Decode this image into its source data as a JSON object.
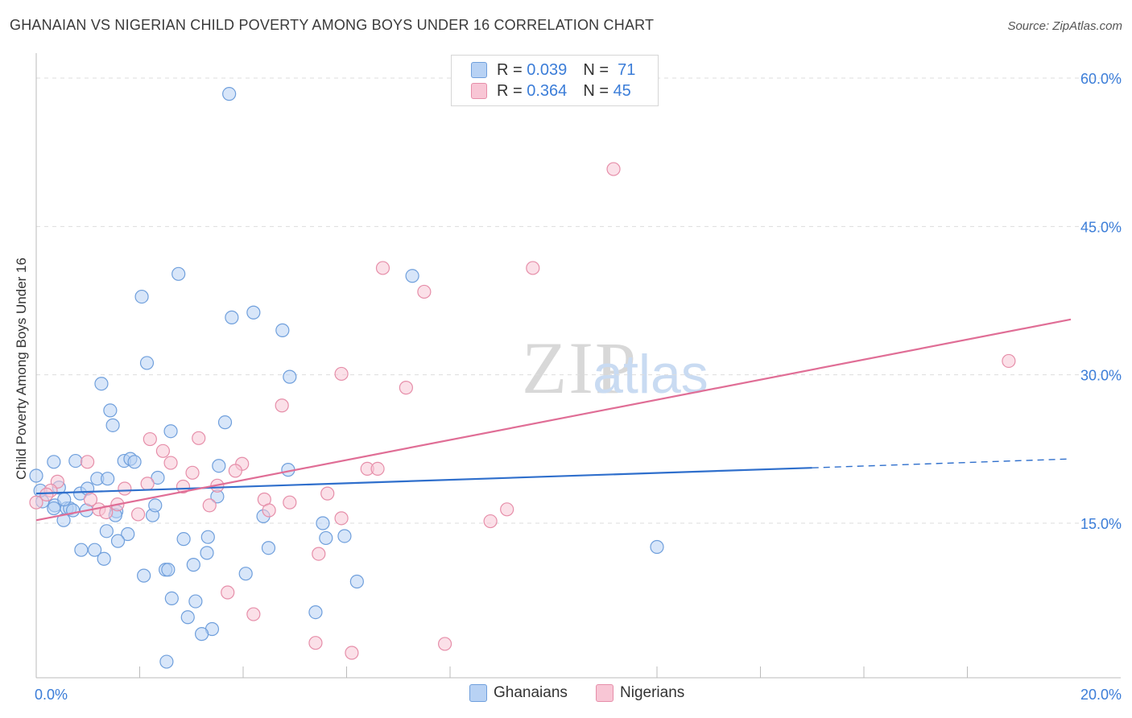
{
  "header": {
    "title": "GHANAIAN VS NIGERIAN CHILD POVERTY AMONG BOYS UNDER 16 CORRELATION CHART",
    "source": "Source: ZipAtlas.com"
  },
  "watermark": {
    "zip": "ZIP",
    "atlas": "atlas"
  },
  "colors": {
    "blue_fill": "#b8d2f4",
    "blue_stroke": "#6f9fdc",
    "blue_line": "#2f6fcc",
    "pink_fill": "#f8c6d5",
    "pink_stroke": "#e68ea9",
    "pink_line": "#e06e96",
    "tick_text": "#3b7dd8",
    "grid": "#dddddd"
  },
  "legend_top": {
    "rows": [
      {
        "r_label": "R =",
        "r_value": "0.039",
        "n_label": "N =",
        "n_value": "71"
      },
      {
        "r_label": "R =",
        "r_value": "0.364",
        "n_label": "N =",
        "n_value": "45"
      }
    ]
  },
  "legend_bottom": {
    "items": [
      "Ghanaians",
      "Nigerians"
    ]
  },
  "chart_data": {
    "type": "scatter",
    "title": "GHANAIAN VS NIGERIAN CHILD POVERTY AMONG BOYS UNDER 16 CORRELATION CHART",
    "xlabel": "",
    "ylabel": "Child Poverty Among Boys Under 16",
    "xlim": [
      0,
      20
    ],
    "ylim": [
      0,
      60
    ],
    "x_tick_labels": {
      "min": "0.0%",
      "max": "20.0%"
    },
    "y_ticks": [
      15,
      30,
      45,
      60
    ],
    "y_tick_labels": [
      "15.0%",
      "30.0%",
      "45.0%",
      "60.0%"
    ],
    "legend": "bottom-center",
    "series": [
      {
        "name": "Ghanaians",
        "R": 0.039,
        "N": 71,
        "trend": {
          "x0": 0,
          "y0": 18.0,
          "x1": 15.0,
          "y1": 20.6,
          "dash_to_x": 20,
          "dash_to_y": 21.5
        },
        "points": [
          [
            3.73,
            58.4
          ],
          [
            2.75,
            40.2
          ],
          [
            7.27,
            40.0
          ],
          [
            2.04,
            37.9
          ],
          [
            3.78,
            35.8
          ],
          [
            4.2,
            36.3
          ],
          [
            4.76,
            34.5
          ],
          [
            2.14,
            31.2
          ],
          [
            4.9,
            29.8
          ],
          [
            1.26,
            29.1
          ],
          [
            1.43,
            26.4
          ],
          [
            1.48,
            24.9
          ],
          [
            3.65,
            25.2
          ],
          [
            2.6,
            24.3
          ],
          [
            0.0,
            19.8
          ],
          [
            0.34,
            21.2
          ],
          [
            0.76,
            21.3
          ],
          [
            1.7,
            21.3
          ],
          [
            1.82,
            21.5
          ],
          [
            1.9,
            21.2
          ],
          [
            0.36,
            16.8
          ],
          [
            0.59,
            16.5
          ],
          [
            0.65,
            16.5
          ],
          [
            0.71,
            16.3
          ],
          [
            0.85,
            18.0
          ],
          [
            0.99,
            18.5
          ],
          [
            1.18,
            19.5
          ],
          [
            0.54,
            17.4
          ],
          [
            0.44,
            18.6
          ],
          [
            0.12,
            17.2
          ],
          [
            0.08,
            18.3
          ],
          [
            0.53,
            15.3
          ],
          [
            0.34,
            16.5
          ],
          [
            2.35,
            19.6
          ],
          [
            1.38,
            19.5
          ],
          [
            3.5,
            17.7
          ],
          [
            3.53,
            20.8
          ],
          [
            2.25,
            15.8
          ],
          [
            1.55,
            16.2
          ],
          [
            2.3,
            16.8
          ],
          [
            1.77,
            13.9
          ],
          [
            1.36,
            14.2
          ],
          [
            1.58,
            13.2
          ],
          [
            2.85,
            13.4
          ],
          [
            3.32,
            13.6
          ],
          [
            0.87,
            12.3
          ],
          [
            1.13,
            12.3
          ],
          [
            1.31,
            11.4
          ],
          [
            3.3,
            12.0
          ],
          [
            4.49,
            12.5
          ],
          [
            2.5,
            10.3
          ],
          [
            2.55,
            10.3
          ],
          [
            2.08,
            9.7
          ],
          [
            3.04,
            10.8
          ],
          [
            4.05,
            9.9
          ],
          [
            4.87,
            20.4
          ],
          [
            4.39,
            15.7
          ],
          [
            5.54,
            15.0
          ],
          [
            5.6,
            13.5
          ],
          [
            5.96,
            13.7
          ],
          [
            6.2,
            9.1
          ],
          [
            2.62,
            7.4
          ],
          [
            3.08,
            7.1
          ],
          [
            2.93,
            5.5
          ],
          [
            3.4,
            4.3
          ],
          [
            3.2,
            3.8
          ],
          [
            5.4,
            6.0
          ],
          [
            2.52,
            1.0
          ],
          [
            12.0,
            12.6
          ],
          [
            1.53,
            15.8
          ],
          [
            0.97,
            16.3
          ]
        ]
      },
      {
        "name": "Nigerians",
        "R": 0.364,
        "N": 45,
        "trend": {
          "x0": 0,
          "y0": 15.3,
          "x1": 20,
          "y1": 35.6
        },
        "points": [
          [
            11.16,
            50.8
          ],
          [
            6.7,
            40.8
          ],
          [
            9.6,
            40.8
          ],
          [
            7.5,
            38.4
          ],
          [
            18.8,
            31.4
          ],
          [
            5.9,
            30.1
          ],
          [
            7.15,
            28.7
          ],
          [
            4.75,
            26.9
          ],
          [
            2.2,
            23.5
          ],
          [
            3.14,
            23.6
          ],
          [
            2.45,
            22.3
          ],
          [
            0.99,
            21.2
          ],
          [
            2.6,
            21.1
          ],
          [
            3.98,
            21.0
          ],
          [
            3.85,
            20.3
          ],
          [
            6.4,
            20.5
          ],
          [
            6.6,
            20.5
          ],
          [
            3.02,
            20.1
          ],
          [
            2.15,
            19.0
          ],
          [
            0.41,
            19.2
          ],
          [
            3.5,
            18.8
          ],
          [
            2.84,
            18.7
          ],
          [
            1.71,
            18.5
          ],
          [
            0.28,
            18.3
          ],
          [
            0.2,
            17.9
          ],
          [
            5.63,
            18.0
          ],
          [
            1.05,
            17.4
          ],
          [
            1.21,
            16.4
          ],
          [
            1.57,
            16.9
          ],
          [
            4.41,
            17.4
          ],
          [
            4.9,
            17.1
          ],
          [
            3.35,
            16.8
          ],
          [
            4.5,
            16.3
          ],
          [
            1.35,
            16.1
          ],
          [
            1.97,
            15.9
          ],
          [
            5.9,
            15.5
          ],
          [
            9.1,
            16.4
          ],
          [
            8.78,
            15.2
          ],
          [
            5.46,
            11.9
          ],
          [
            3.7,
            8.0
          ],
          [
            4.2,
            5.8
          ],
          [
            5.4,
            2.9
          ],
          [
            7.9,
            2.8
          ],
          [
            6.1,
            1.9
          ],
          [
            0.0,
            17.1
          ]
        ]
      }
    ]
  }
}
